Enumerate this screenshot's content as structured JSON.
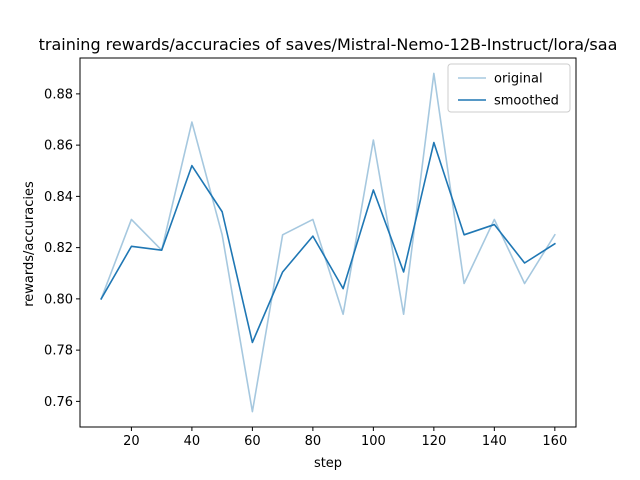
{
  "chart_data": {
    "type": "line",
    "title": "training rewards/accuracies of saves/Mistral-Nemo-12B-Instruct/lora/saa",
    "xlabel": "step",
    "ylabel": "rewards/accuracies",
    "xlim": [
      3,
      167
    ],
    "ylim": [
      0.75,
      0.894
    ],
    "xticks": [
      20,
      40,
      60,
      80,
      100,
      120,
      140,
      160
    ],
    "yticks": [
      0.76,
      0.78,
      0.8,
      0.82,
      0.84,
      0.86,
      0.88
    ],
    "grid": false,
    "legend_position": "top-right",
    "x": [
      10,
      20,
      30,
      40,
      50,
      60,
      70,
      80,
      90,
      100,
      110,
      120,
      130,
      140,
      150,
      160
    ],
    "series": [
      {
        "name": "original",
        "color": "#a6c8df",
        "values": [
          0.8,
          0.831,
          0.819,
          0.869,
          0.825,
          0.756,
          0.825,
          0.831,
          0.794,
          0.862,
          0.794,
          0.888,
          0.806,
          0.831,
          0.806,
          0.825
        ]
      },
      {
        "name": "smoothed",
        "color": "#1f77b4",
        "values": [
          0.8,
          0.8205,
          0.819,
          0.852,
          0.834,
          0.783,
          0.8105,
          0.8245,
          0.804,
          0.8425,
          0.8105,
          0.861,
          0.825,
          0.829,
          0.814,
          0.8215
        ]
      }
    ]
  }
}
